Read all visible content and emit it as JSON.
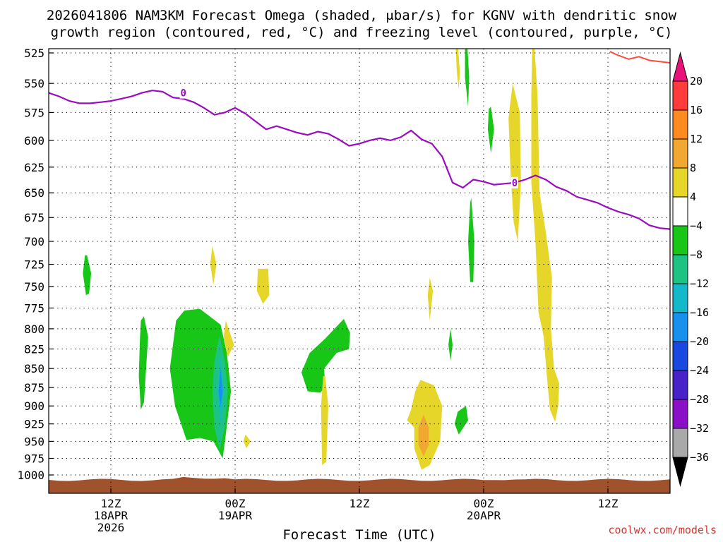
{
  "chart_data": {
    "type": "heatmap",
    "title_line1": "2026041806 NAM3KM Forecast Omega (shaded, μbar/s) for KGNV with dendritic snow",
    "title_line2": "growth region (contoured, red, °C) and freezing level (contoured, purple, °C)",
    "xlabel": "Forecast Time (UTC)",
    "credit": "coolwx.com/models",
    "x_unit": "forecast hours from 2026041806",
    "xlim": [
      0,
      60
    ],
    "ylim": [
      525,
      1000
    ],
    "y_scale": "pressure (hPa), log, increasing downward",
    "y_ticks": [
      "525",
      "550",
      "575",
      "600",
      "625",
      "650",
      "675",
      "700",
      "725",
      "750",
      "775",
      "800",
      "825",
      "850",
      "875",
      "900",
      "925",
      "950",
      "975",
      "1000"
    ],
    "x_ticks": [
      {
        "x": 6,
        "l1": "12Z",
        "l2": "18APR",
        "l3": "2026"
      },
      {
        "x": 18,
        "l1": "00Z",
        "l2": "19APR",
        "l3": ""
      },
      {
        "x": 30,
        "l1": "12Z",
        "l2": "",
        "l3": ""
      },
      {
        "x": 42,
        "l1": "00Z",
        "l2": "20APR",
        "l3": ""
      },
      {
        "x": 54,
        "l1": "12Z",
        "l2": "",
        "l3": ""
      }
    ],
    "colorbar": {
      "labels": [
        "20",
        "16",
        "12",
        "8",
        "4",
        "−4",
        "−8",
        "−12",
        "−16",
        "−20",
        "−24",
        "−28",
        "−32",
        "−36"
      ],
      "colors": [
        "#ff3b3b",
        "#ff8a1f",
        "#f0a830",
        "#e6d62a",
        "#ffffff",
        "#17c617",
        "#1dc383",
        "#13b9c8",
        "#1890ee",
        "#1848e0",
        "#4622c8",
        "#8a10c8",
        "#a9a9a9"
      ],
      "top_color": "#e8127a",
      "bottom_color": "#000000"
    },
    "freezing_level_label": "0",
    "freezing_level_color": "#9b0bbf",
    "freezing_level": [
      [
        0,
        558
      ],
      [
        1,
        561
      ],
      [
        2,
        565
      ],
      [
        3,
        567
      ],
      [
        4,
        567
      ],
      [
        5,
        566
      ],
      [
        6,
        565
      ],
      [
        7,
        563
      ],
      [
        8,
        561
      ],
      [
        9,
        558
      ],
      [
        10,
        556
      ],
      [
        11,
        557
      ],
      [
        12,
        562
      ],
      [
        13,
        563
      ],
      [
        14,
        566
      ],
      [
        15,
        571
      ],
      [
        16,
        577
      ],
      [
        17,
        575
      ],
      [
        18,
        571
      ],
      [
        19,
        576
      ],
      [
        20,
        583
      ],
      [
        21,
        590
      ],
      [
        22,
        587
      ],
      [
        23,
        590
      ],
      [
        24,
        593
      ],
      [
        25,
        595
      ],
      [
        26,
        592
      ],
      [
        27,
        594
      ],
      [
        28,
        599
      ],
      [
        29,
        605
      ],
      [
        30,
        603
      ],
      [
        31,
        600
      ],
      [
        32,
        598
      ],
      [
        33,
        600
      ],
      [
        34,
        597
      ],
      [
        35,
        591
      ],
      [
        36,
        599
      ],
      [
        37,
        603
      ],
      [
        38,
        615
      ],
      [
        39,
        640
      ],
      [
        40,
        645
      ],
      [
        41,
        637
      ],
      [
        42,
        639
      ],
      [
        43,
        642
      ],
      [
        44,
        641
      ],
      [
        45,
        640
      ],
      [
        46,
        637
      ],
      [
        47,
        633
      ],
      [
        48,
        637
      ],
      [
        49,
        644
      ],
      [
        50,
        648
      ],
      [
        51,
        654
      ],
      [
        52,
        657
      ],
      [
        53,
        660
      ],
      [
        54,
        665
      ],
      [
        55,
        669
      ],
      [
        56,
        672
      ],
      [
        57,
        676
      ],
      [
        58,
        683
      ],
      [
        59,
        686
      ],
      [
        60,
        687
      ]
    ],
    "dgz_color": "#ff4a3b",
    "dgz_contour": [
      [
        54.2,
        524
      ],
      [
        55,
        527
      ],
      [
        56,
        530
      ],
      [
        57,
        528
      ],
      [
        58,
        531
      ],
      [
        59,
        532
      ],
      [
        60,
        533
      ]
    ],
    "terrain_color": "#a0522d",
    "omega_regions": [
      {
        "v": -6,
        "pts": [
          [
            3.7,
            715
          ],
          [
            4.1,
            735
          ],
          [
            3.9,
            758
          ],
          [
            3.6,
            760
          ],
          [
            3.3,
            735
          ],
          [
            3.5,
            715
          ]
        ]
      },
      {
        "v": -6,
        "pts": [
          [
            9.2,
            785
          ],
          [
            9.6,
            810
          ],
          [
            9.4,
            850
          ],
          [
            9.2,
            895
          ],
          [
            8.9,
            905
          ],
          [
            8.7,
            860
          ],
          [
            8.8,
            815
          ],
          [
            8.9,
            790
          ]
        ]
      },
      {
        "v": -6,
        "pts": [
          [
            13.1,
            778
          ],
          [
            14.6,
            776
          ],
          [
            16.6,
            795
          ],
          [
            17.2,
            830
          ],
          [
            17.6,
            880
          ],
          [
            17.1,
            940
          ],
          [
            16.8,
            975
          ],
          [
            15.9,
            950
          ],
          [
            14.6,
            945
          ],
          [
            13.3,
            948
          ],
          [
            12.2,
            900
          ],
          [
            11.7,
            850
          ],
          [
            12.3,
            790
          ]
        ]
      },
      {
        "v": -10,
        "pts": [
          [
            16.5,
            808
          ],
          [
            17.0,
            840
          ],
          [
            17.3,
            880
          ],
          [
            17.0,
            930
          ],
          [
            16.5,
            962
          ],
          [
            16.0,
            930
          ],
          [
            15.8,
            880
          ],
          [
            16.0,
            840
          ]
        ]
      },
      {
        "v": -14,
        "pts": [
          [
            16.6,
            835
          ],
          [
            16.9,
            880
          ],
          [
            16.6,
            925
          ],
          [
            16.3,
            880
          ]
        ]
      },
      {
        "v": -18,
        "pts": [
          [
            16.6,
            850
          ],
          [
            16.8,
            880
          ],
          [
            16.6,
            900
          ],
          [
            16.4,
            880
          ]
        ]
      },
      {
        "v": -6,
        "pts": [
          [
            28.5,
            788
          ],
          [
            29.1,
            805
          ],
          [
            29.0,
            825
          ],
          [
            27.8,
            830
          ],
          [
            26.6,
            850
          ],
          [
            26.7,
            875
          ],
          [
            26.2,
            882
          ],
          [
            25.0,
            880
          ],
          [
            24.4,
            855
          ],
          [
            25.2,
            830
          ],
          [
            26.7,
            812
          ]
        ]
      },
      {
        "v": -6,
        "pts": [
          [
            42.7,
            570
          ],
          [
            43.0,
            590
          ],
          [
            42.7,
            612
          ],
          [
            42.4,
            590
          ],
          [
            42.5,
            572
          ]
        ]
      },
      {
        "v": -6,
        "pts": [
          [
            40.4,
            515
          ],
          [
            40.6,
            545
          ],
          [
            40.5,
            570
          ],
          [
            40.2,
            545
          ],
          [
            40.2,
            520
          ]
        ]
      },
      {
        "v": -6,
        "pts": [
          [
            40.8,
            655
          ],
          [
            41.1,
            700
          ],
          [
            41.0,
            745
          ],
          [
            40.7,
            745
          ],
          [
            40.5,
            700
          ],
          [
            40.7,
            660
          ]
        ]
      },
      {
        "v": -6,
        "pts": [
          [
            38.8,
            800
          ],
          [
            39.0,
            820
          ],
          [
            38.8,
            840
          ],
          [
            38.6,
            820
          ]
        ]
      },
      {
        "v": -6,
        "pts": [
          [
            39.5,
            908
          ],
          [
            40.3,
            900
          ],
          [
            40.5,
            920
          ],
          [
            39.6,
            940
          ],
          [
            39.2,
            925
          ]
        ]
      },
      {
        "v": 6,
        "pts": [
          [
            15.8,
            705
          ],
          [
            16.2,
            725
          ],
          [
            15.9,
            748
          ],
          [
            15.6,
            725
          ]
        ]
      },
      {
        "v": 6,
        "pts": [
          [
            17.1,
            790
          ],
          [
            17.9,
            820
          ],
          [
            17.3,
            835
          ],
          [
            16.9,
            810
          ]
        ]
      },
      {
        "v": 6,
        "pts": [
          [
            20.2,
            730
          ],
          [
            21.2,
            730
          ],
          [
            21.3,
            760
          ],
          [
            20.7,
            770
          ],
          [
            20.1,
            755
          ]
        ]
      },
      {
        "v": 6,
        "pts": [
          [
            19.0,
            940
          ],
          [
            19.5,
            950
          ],
          [
            19.1,
            960
          ],
          [
            18.8,
            950
          ]
        ]
      },
      {
        "v": 6,
        "pts": [
          [
            36.8,
            740
          ],
          [
            37.1,
            755
          ],
          [
            36.8,
            790
          ],
          [
            36.6,
            760
          ]
        ]
      },
      {
        "v": 6,
        "pts": [
          [
            26.7,
            860
          ],
          [
            27.0,
            900
          ],
          [
            26.8,
            980
          ],
          [
            26.4,
            985
          ],
          [
            26.3,
            900
          ],
          [
            26.5,
            860
          ]
        ]
      },
      {
        "v": 6,
        "pts": [
          [
            35.9,
            865
          ],
          [
            37.2,
            872
          ],
          [
            38.0,
            900
          ],
          [
            37.8,
            950
          ],
          [
            36.8,
            985
          ],
          [
            36.0,
            992
          ],
          [
            35.3,
            960
          ],
          [
            35.3,
            930
          ],
          [
            34.6,
            920
          ],
          [
            35.0,
            905
          ],
          [
            35.4,
            880
          ]
        ]
      },
      {
        "v": 10,
        "pts": [
          [
            36.2,
            912
          ],
          [
            36.7,
            930
          ],
          [
            36.7,
            955
          ],
          [
            36.2,
            972
          ],
          [
            35.7,
            955
          ],
          [
            35.7,
            930
          ]
        ]
      },
      {
        "v": 6,
        "pts": [
          [
            39.5,
            518
          ],
          [
            39.7,
            540
          ],
          [
            39.6,
            555
          ],
          [
            39.4,
            540
          ],
          [
            39.3,
            520
          ]
        ]
      },
      {
        "v": 6,
        "pts": [
          [
            44.8,
            550
          ],
          [
            45.5,
            575
          ],
          [
            45.6,
            640
          ],
          [
            45.3,
            700
          ],
          [
            44.9,
            680
          ],
          [
            44.6,
            630
          ],
          [
            44.4,
            580
          ]
        ]
      },
      {
        "v": 6,
        "pts": [
          [
            46.9,
            520
          ],
          [
            47.2,
            560
          ],
          [
            47.4,
            650
          ],
          [
            48.0,
            690
          ],
          [
            48.6,
            740
          ],
          [
            48.5,
            800
          ],
          [
            48.8,
            850
          ],
          [
            49.3,
            870
          ],
          [
            49.2,
            900
          ],
          [
            48.9,
            922
          ],
          [
            48.4,
            905
          ],
          [
            48.1,
            860
          ],
          [
            47.8,
            810
          ],
          [
            47.3,
            780
          ],
          [
            47.0,
            700
          ],
          [
            46.6,
            640
          ],
          [
            46.6,
            560
          ],
          [
            46.7,
            520
          ]
        ]
      }
    ]
  }
}
